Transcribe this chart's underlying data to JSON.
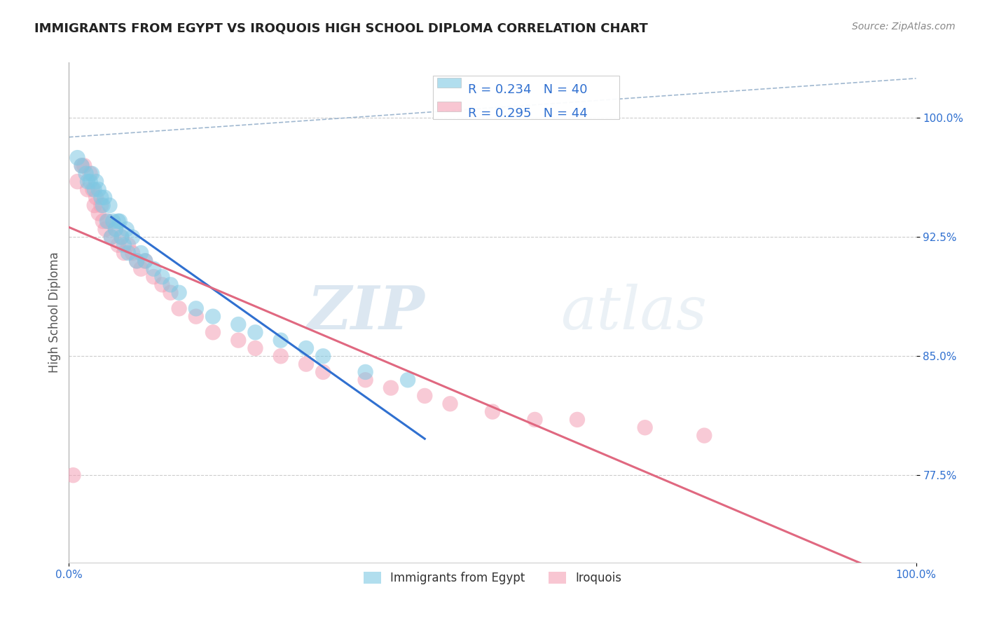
{
  "title": "IMMIGRANTS FROM EGYPT VS IROQUOIS HIGH SCHOOL DIPLOMA CORRELATION CHART",
  "source": "Source: ZipAtlas.com",
  "ylabel": "High School Diploma",
  "ytick_labels": [
    "77.5%",
    "85.0%",
    "92.5%",
    "100.0%"
  ],
  "ytick_values": [
    0.775,
    0.85,
    0.925,
    1.0
  ],
  "xlim": [
    0.0,
    1.0
  ],
  "ylim": [
    0.72,
    1.035
  ],
  "legend_blue_r": "R = 0.234",
  "legend_blue_n": "N = 40",
  "legend_pink_r": "R = 0.295",
  "legend_pink_n": "N = 44",
  "blue_color": "#7ec8e3",
  "pink_color": "#f4a0b5",
  "blue_line_color": "#3070d0",
  "pink_line_color": "#e06880",
  "dashed_line_color": "#a0b8d0",
  "blue_scatter_x": [
    0.01,
    0.015,
    0.02,
    0.022,
    0.025,
    0.027,
    0.03,
    0.032,
    0.035,
    0.038,
    0.04,
    0.042,
    0.045,
    0.048,
    0.05,
    0.052,
    0.055,
    0.058,
    0.06,
    0.062,
    0.065,
    0.068,
    0.07,
    0.075,
    0.08,
    0.085,
    0.09,
    0.1,
    0.11,
    0.12,
    0.13,
    0.15,
    0.17,
    0.2,
    0.22,
    0.25,
    0.28,
    0.3,
    0.35,
    0.4
  ],
  "blue_scatter_y": [
    0.975,
    0.97,
    0.965,
    0.96,
    0.96,
    0.965,
    0.955,
    0.96,
    0.955,
    0.95,
    0.945,
    0.95,
    0.935,
    0.945,
    0.925,
    0.935,
    0.93,
    0.935,
    0.935,
    0.925,
    0.92,
    0.93,
    0.915,
    0.925,
    0.91,
    0.915,
    0.91,
    0.905,
    0.9,
    0.895,
    0.89,
    0.88,
    0.875,
    0.87,
    0.865,
    0.86,
    0.855,
    0.85,
    0.84,
    0.835
  ],
  "pink_scatter_x": [
    0.005,
    0.01,
    0.015,
    0.018,
    0.022,
    0.025,
    0.028,
    0.03,
    0.032,
    0.035,
    0.038,
    0.04,
    0.043,
    0.046,
    0.05,
    0.055,
    0.058,
    0.062,
    0.065,
    0.07,
    0.075,
    0.08,
    0.085,
    0.09,
    0.1,
    0.11,
    0.12,
    0.13,
    0.15,
    0.17,
    0.2,
    0.22,
    0.25,
    0.28,
    0.3,
    0.35,
    0.38,
    0.42,
    0.45,
    0.5,
    0.55,
    0.6,
    0.68,
    0.75
  ],
  "pink_scatter_y": [
    0.775,
    0.96,
    0.97,
    0.97,
    0.955,
    0.965,
    0.955,
    0.945,
    0.95,
    0.94,
    0.945,
    0.935,
    0.93,
    0.935,
    0.925,
    0.93,
    0.92,
    0.925,
    0.915,
    0.92,
    0.915,
    0.91,
    0.905,
    0.91,
    0.9,
    0.895,
    0.89,
    0.88,
    0.875,
    0.865,
    0.86,
    0.855,
    0.85,
    0.845,
    0.84,
    0.835,
    0.83,
    0.825,
    0.82,
    0.815,
    0.81,
    0.81,
    0.805,
    0.8
  ],
  "watermark_zip": "ZIP",
  "watermark_atlas": "atlas"
}
